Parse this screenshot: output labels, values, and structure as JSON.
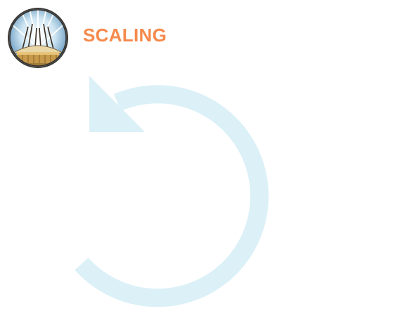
{
  "header": {
    "title": "SCALING",
    "title_color": "#f58a4c",
    "logo_icon": "dome-emblem-icon"
  },
  "graphic": {
    "icon": "rotate-counterclockwise-arrow-icon",
    "color": "#dbf0f7"
  }
}
